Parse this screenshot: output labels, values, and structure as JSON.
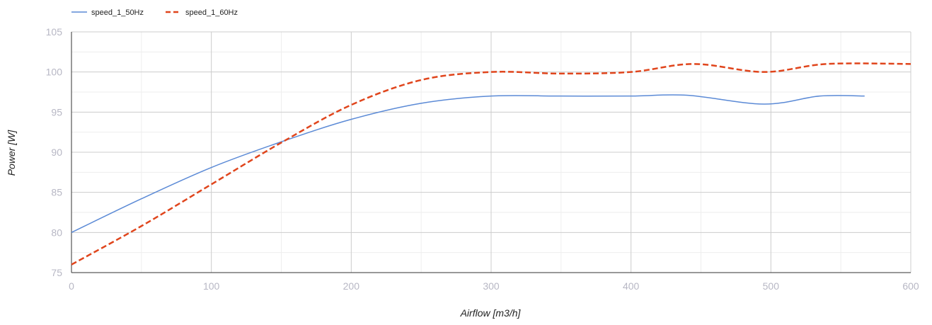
{
  "chart_data": {
    "type": "line",
    "xlabel": "Airflow [m3/h]",
    "ylabel": "Power [W]",
    "xlim": [
      0,
      600
    ],
    "ylim": [
      75,
      105
    ],
    "x_ticks": [
      "0",
      "100",
      "200",
      "300",
      "400",
      "500",
      "600"
    ],
    "y_ticks": [
      "75",
      "80",
      "85",
      "90",
      "95",
      "100",
      "105"
    ],
    "grid": true,
    "legend_position": "top-left",
    "series": [
      {
        "name": "speed_1_50Hz",
        "color": "#5b8ad6",
        "dash": "solid",
        "x": [
          0,
          50,
          100,
          150,
          200,
          250,
          300,
          350,
          400,
          440,
          495,
          535,
          567
        ],
        "y": [
          80,
          84.2,
          88.1,
          91.3,
          94.1,
          96.1,
          97.0,
          97.0,
          97.0,
          97.1,
          96.0,
          97.0,
          97.0
        ]
      },
      {
        "name": "speed_1_60Hz",
        "color": "#e0451c",
        "dash": "dashed",
        "x": [
          0,
          50,
          100,
          150,
          200,
          250,
          300,
          350,
          400,
          445,
          495,
          540,
          600
        ],
        "y": [
          76,
          80.8,
          86.0,
          91.2,
          95.9,
          99.0,
          100.0,
          99.8,
          100.0,
          101.0,
          100.0,
          101.0,
          101.0
        ]
      }
    ]
  }
}
